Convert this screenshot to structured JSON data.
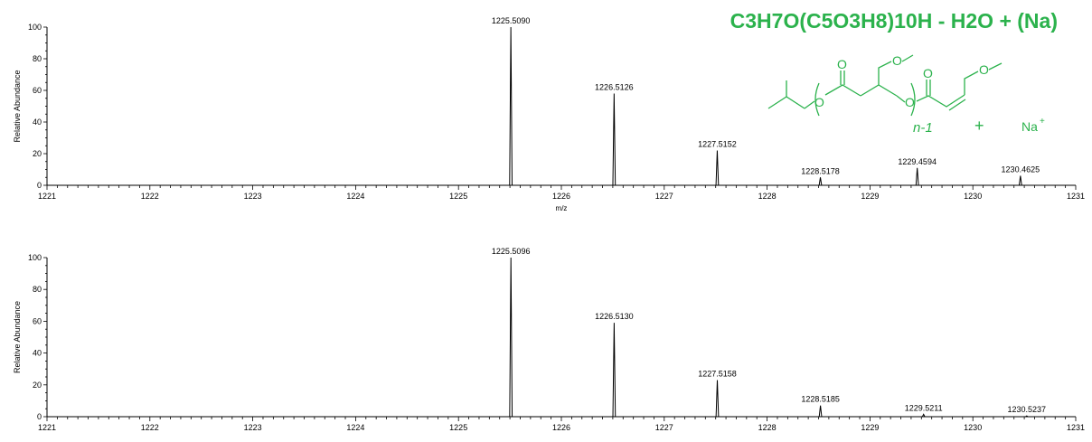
{
  "annotation": {
    "formula": "C3H7O(C5O3H8)10H - H2O + (Na)",
    "structure_subscript": "n-1",
    "plus_sign": "+",
    "cation": "Na",
    "cation_charge": "+",
    "atom_label": "O",
    "color": "#2bb24c"
  },
  "chart_data": [
    {
      "type": "line",
      "title": "",
      "xlabel": "m/z",
      "ylabel": "Relative Abundance",
      "xlim": [
        1221,
        1231
      ],
      "ylim": [
        0,
        100
      ],
      "xticks": [
        1221,
        1222,
        1223,
        1224,
        1225,
        1226,
        1227,
        1228,
        1229,
        1230,
        1231
      ],
      "yticks": [
        0,
        20,
        40,
        60,
        80,
        100
      ],
      "line_color": "#000000",
      "peaks": [
        {
          "x": 1225.509,
          "y": 100,
          "label": "1225.5090"
        },
        {
          "x": 1226.5126,
          "y": 58,
          "label": "1226.5126"
        },
        {
          "x": 1227.5152,
          "y": 22,
          "label": "1227.5152"
        },
        {
          "x": 1228.5178,
          "y": 5,
          "label": "1228.5178"
        },
        {
          "x": 1229.4594,
          "y": 11,
          "label": "1229.4594"
        },
        {
          "x": 1230.4625,
          "y": 6,
          "label": "1230.4625"
        }
      ]
    },
    {
      "type": "line",
      "title": "",
      "xlabel": "",
      "ylabel": "Relative Abundance",
      "xlim": [
        1221,
        1231
      ],
      "ylim": [
        0,
        100
      ],
      "xticks": [
        1221,
        1222,
        1223,
        1224,
        1225,
        1226,
        1227,
        1228,
        1229,
        1230,
        1231
      ],
      "yticks": [
        0,
        20,
        40,
        60,
        80,
        100
      ],
      "line_color": "#000000",
      "peaks": [
        {
          "x": 1225.5096,
          "y": 100,
          "label": "1225.5096"
        },
        {
          "x": 1226.513,
          "y": 59,
          "label": "1226.5130"
        },
        {
          "x": 1227.5158,
          "y": 23,
          "label": "1227.5158"
        },
        {
          "x": 1228.5185,
          "y": 7,
          "label": "1228.5185"
        },
        {
          "x": 1229.5211,
          "y": 1.5,
          "label": "1229.5211"
        },
        {
          "x": 1230.5237,
          "y": 0.5,
          "label": "1230.5237"
        }
      ]
    }
  ]
}
